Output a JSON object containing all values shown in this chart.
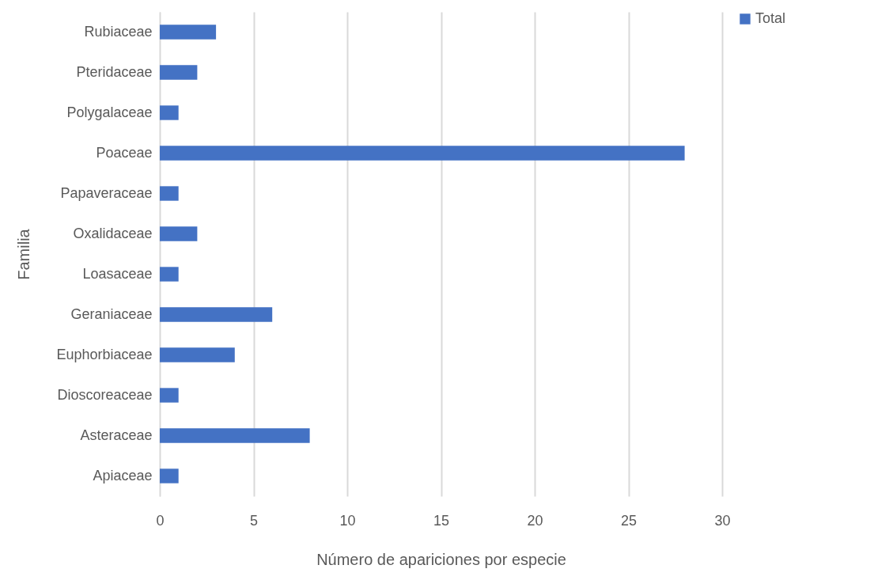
{
  "chart_data": {
    "type": "bar",
    "orientation": "horizontal",
    "xlabel": "Número de apariciones por especie",
    "ylabel": "Familia",
    "categories": [
      "Rubiaceae",
      "Pteridaceae",
      "Polygalaceae",
      "Poaceae",
      "Papaveraceae",
      "Oxalidaceae",
      "Loasaceae",
      "Geraniaceae",
      "Euphorbiaceae",
      "Dioscoreaceae",
      "Asteraceae",
      "Apiaceae"
    ],
    "series": [
      {
        "name": "Total",
        "color": "#4472c4",
        "values": [
          3,
          2,
          1,
          28,
          1,
          2,
          1,
          6,
          4,
          1,
          8,
          1
        ]
      }
    ],
    "xlim": [
      0,
      30
    ],
    "xticks": [
      0,
      5,
      10,
      15,
      20,
      25,
      30
    ],
    "grid": "x",
    "legend": "right"
  }
}
